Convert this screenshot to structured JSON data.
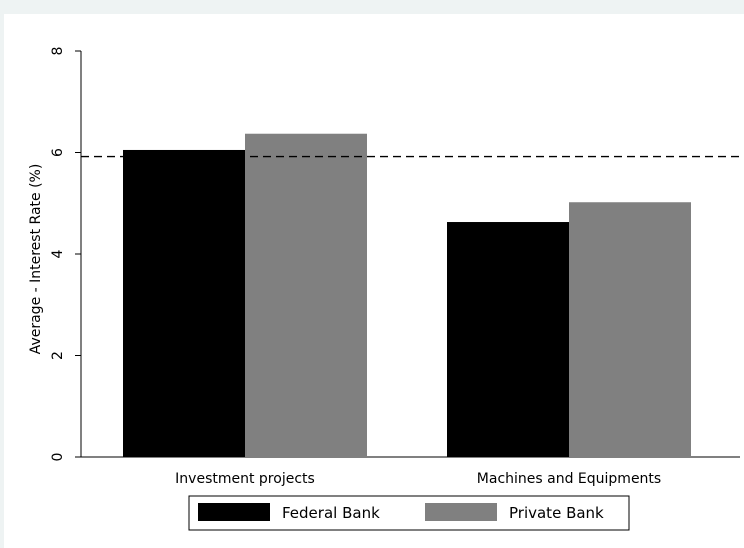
{
  "chart_data": {
    "type": "bar",
    "categories": [
      "Investment projects",
      "Machines and Equipments"
    ],
    "series": [
      {
        "name": "Federal Bank",
        "values": [
          6.05,
          4.63
        ],
        "color": "#000000"
      },
      {
        "name": "Private Bank",
        "values": [
          6.37,
          5.02
        ],
        "color": "#808080"
      }
    ],
    "reference_line": {
      "value": 5.92,
      "style": "dashed"
    },
    "ylabel": "Average - Interest Rate (%)",
    "xlabel": "",
    "ylim": [
      0,
      8
    ],
    "yticks": [
      0,
      2,
      4,
      6,
      8
    ],
    "grid": false,
    "legend_position": "bottom"
  }
}
